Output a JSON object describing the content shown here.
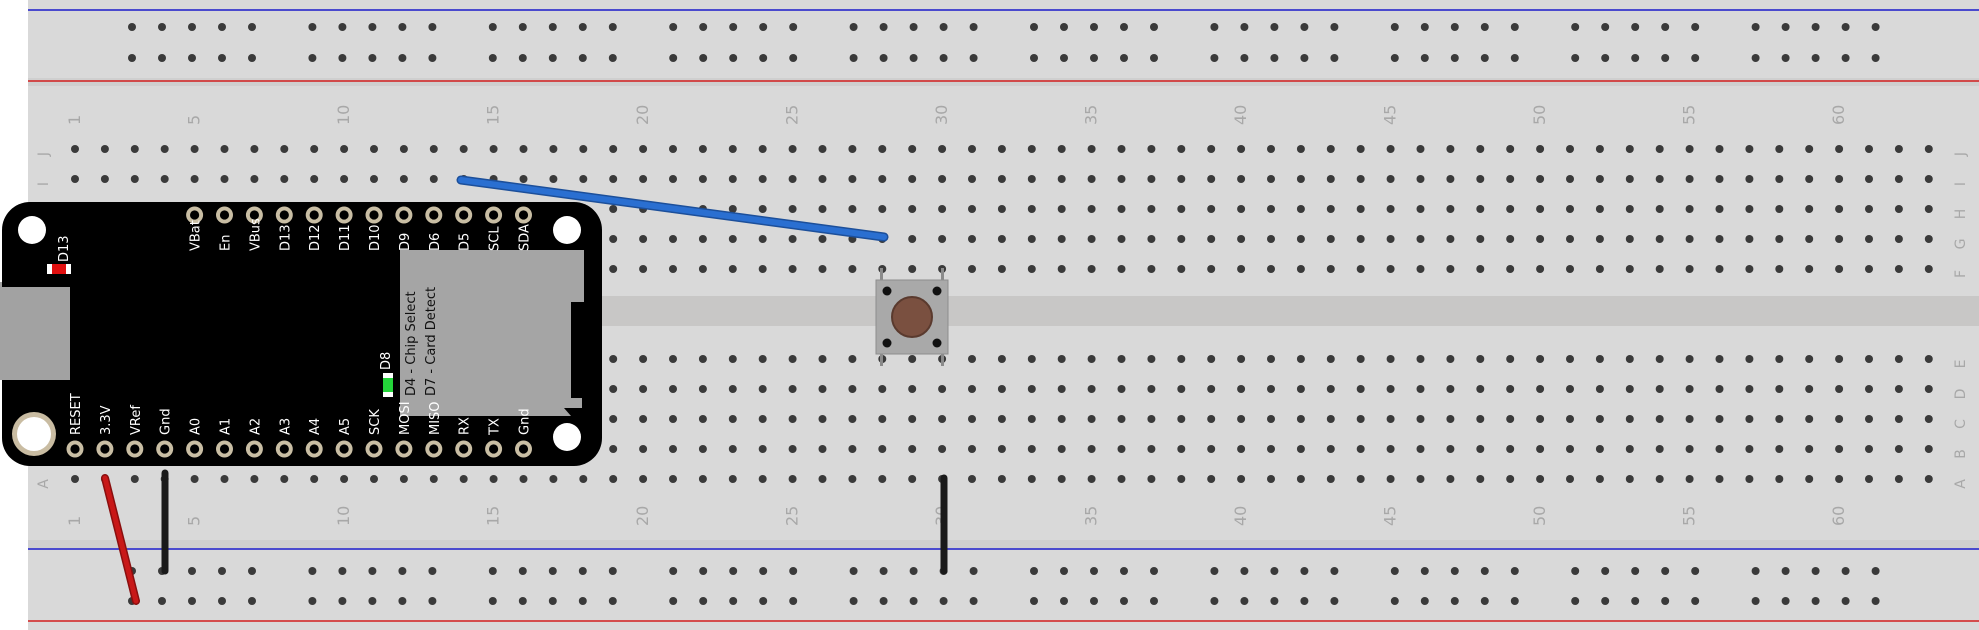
{
  "breadboard": {
    "column_numbers": [
      "1",
      "5",
      "10",
      "15",
      "20",
      "25",
      "30",
      "35",
      "40",
      "45",
      "50",
      "55",
      "60"
    ],
    "top_rows": [
      "J",
      "I",
      "H",
      "G",
      "F"
    ],
    "bottom_rows": [
      "E",
      "D",
      "C",
      "B",
      "A"
    ],
    "colors": {
      "board": "#d9d9d9",
      "channel": "#c8c7c6",
      "hole": "#3a3a3a",
      "label": "#a8a8a8",
      "rail_red": "#d21f1f",
      "rail_blue": "#1a1acb"
    }
  },
  "feather": {
    "board_color": "#000000",
    "top_pins": [
      "VBat",
      "En",
      "VBus",
      "D13",
      "D12",
      "D11",
      "D10",
      "D9",
      "D6",
      "D5",
      "SCL",
      "SDA"
    ],
    "bottom_pins": [
      "RESET",
      "3.3V",
      "VRef",
      "Gnd",
      "A0",
      "A1",
      "A2",
      "A3",
      "A4",
      "A5",
      "SCK",
      "MOSI",
      "MISO",
      "RX",
      "TX",
      "Gnd"
    ],
    "led_d13_label": "D13",
    "led_d8_label": "D8",
    "sd_label_1": "D4 - Chip Select",
    "sd_label_2": "D7 - Card Detect"
  },
  "button": {
    "icon": "pushbutton-icon",
    "cap_color": "#7a5040"
  },
  "wires": [
    {
      "name": "blue-wire",
      "color": "#2a6fd1"
    },
    {
      "name": "red-wire",
      "color": "#c81818"
    },
    {
      "name": "black-wire-left",
      "color": "#1a1a1a"
    },
    {
      "name": "black-wire-button",
      "color": "#1a1a1a"
    }
  ]
}
